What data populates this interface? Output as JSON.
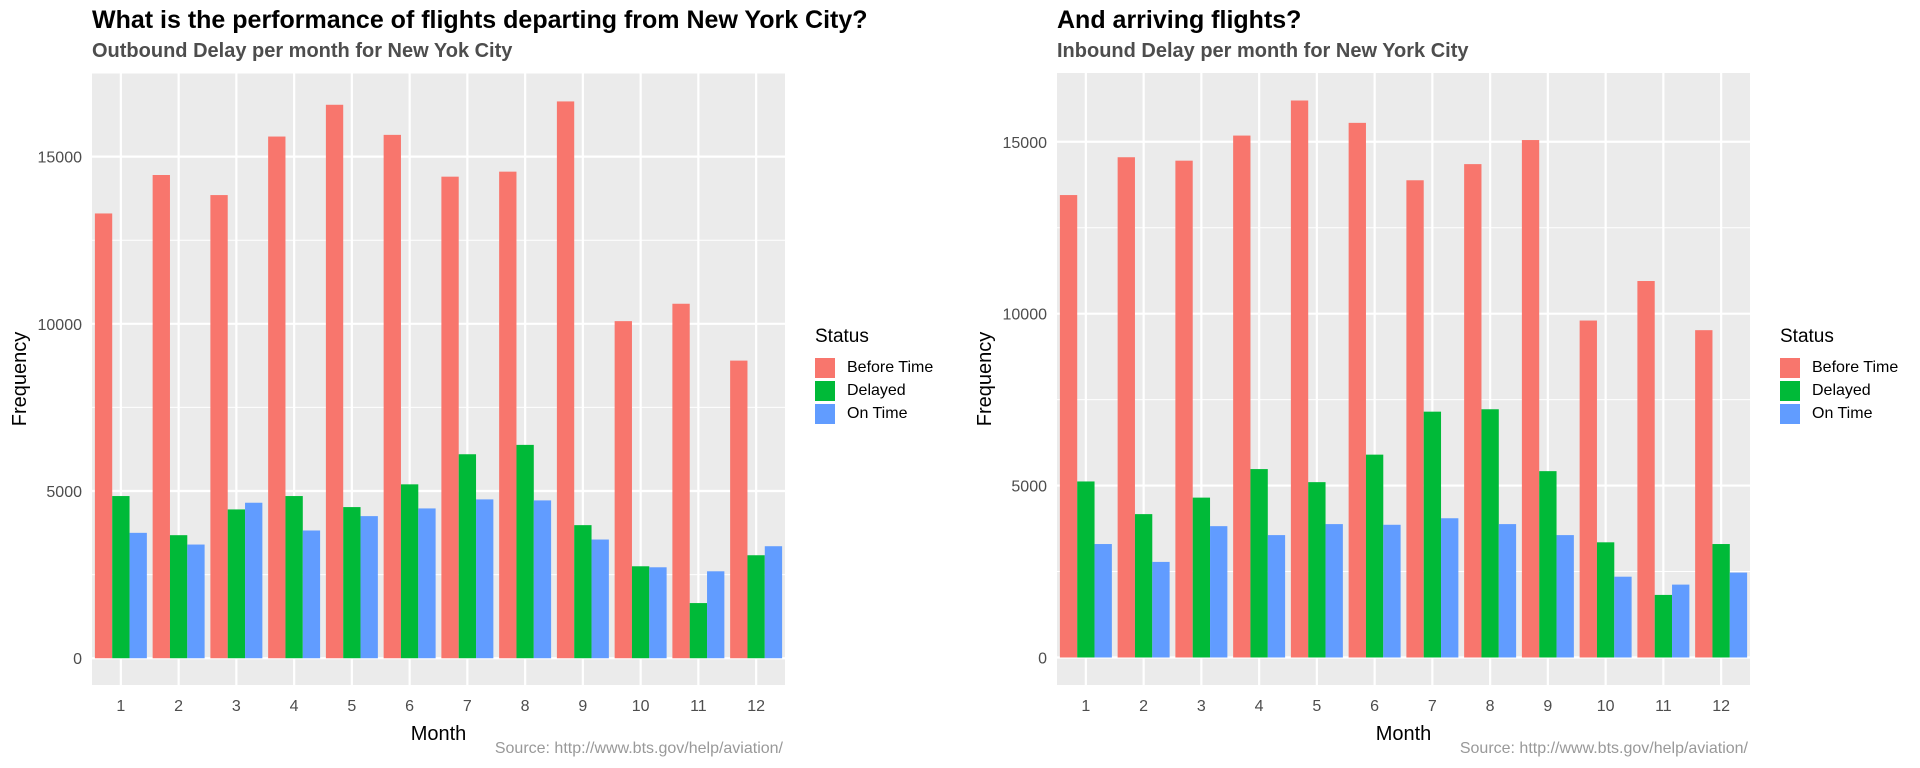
{
  "colors": {
    "before_time": "#F8766D",
    "delayed": "#00BA38",
    "on_time": "#619CFF",
    "panel_bg": "#EBEBEB",
    "grid": "#FFFFFF"
  },
  "legend": {
    "title": "Status",
    "items": [
      "Before Time",
      "Delayed",
      "On Time"
    ]
  },
  "chart_data": [
    {
      "type": "bar",
      "title": "What is the performance of flights departing from New York City?",
      "subtitle": "Outbound Delay per month for New Yok City",
      "xlabel": "Month",
      "ylabel": "Frequency",
      "caption": "Source: http://www.bts.gov/help/aviation/",
      "categories": [
        "1",
        "2",
        "3",
        "4",
        "5",
        "6",
        "7",
        "8",
        "9",
        "10",
        "11",
        "12"
      ],
      "ylim": [
        -800,
        17500
      ],
      "yticks": [
        0,
        5000,
        10000,
        15000
      ],
      "grid": true,
      "legend_position": "right",
      "series": [
        {
          "name": "Before Time",
          "values": [
            13300,
            14450,
            13850,
            15600,
            16550,
            15650,
            14400,
            14550,
            16650,
            10080,
            10600,
            8900
          ]
        },
        {
          "name": "Delayed",
          "values": [
            4850,
            3680,
            4450,
            4850,
            4520,
            5200,
            6100,
            6380,
            3980,
            2750,
            1650,
            3080
          ]
        },
        {
          "name": "On Time",
          "values": [
            3750,
            3400,
            4650,
            3820,
            4250,
            4480,
            4750,
            4720,
            3550,
            2720,
            2600,
            3350
          ]
        }
      ]
    },
    {
      "type": "bar",
      "title": "And arriving flights?",
      "subtitle": "Inbound Delay per month for New York City",
      "xlabel": "Month",
      "ylabel": "Frequency",
      "caption": "Source: http://www.bts.gov/help/aviation/",
      "categories": [
        "1",
        "2",
        "3",
        "4",
        "5",
        "6",
        "7",
        "8",
        "9",
        "10",
        "11",
        "12"
      ],
      "ylim": [
        -800,
        17000
      ],
      "yticks": [
        0,
        5000,
        10000,
        15000
      ],
      "grid": true,
      "legend_position": "right",
      "series": [
        {
          "name": "Before Time",
          "values": [
            13450,
            14550,
            14450,
            15180,
            16200,
            15550,
            13880,
            14350,
            15050,
            9800,
            10950,
            9520
          ]
        },
        {
          "name": "Delayed",
          "values": [
            5120,
            4170,
            4650,
            5480,
            5100,
            5900,
            7150,
            7220,
            5420,
            3350,
            1820,
            3300
          ]
        },
        {
          "name": "On Time",
          "values": [
            3300,
            2780,
            3820,
            3560,
            3880,
            3860,
            4050,
            3880,
            3560,
            2350,
            2120,
            2470
          ]
        }
      ]
    }
  ]
}
